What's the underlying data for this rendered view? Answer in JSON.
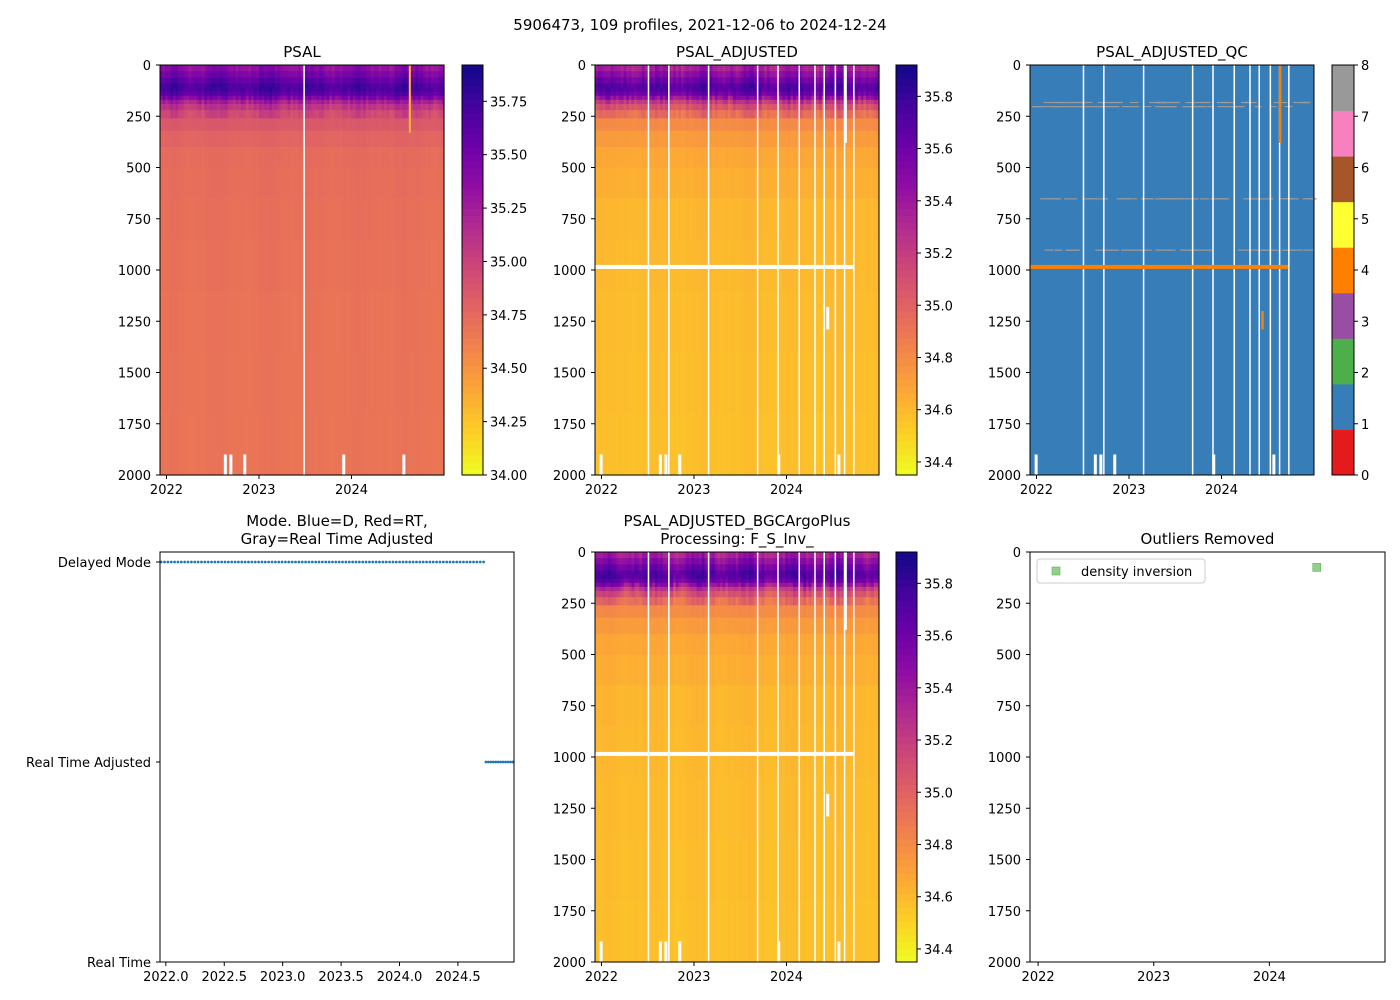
{
  "suptitle": "5906473, 109 profiles, 2021-12-06 to 2024-12-24",
  "colors": {
    "gap": "#ffffff",
    "mode_dot": "#1f77b4",
    "qc_fill": "#377eb8",
    "qc_flag4": "#ff7f00",
    "qc_flag8": "#999999",
    "legend_square": "#90d08a"
  },
  "chart_data": [
    {
      "type": "heatmap",
      "title": "PSAL",
      "x_tick_labels": [
        "2022",
        "2023",
        "2024"
      ],
      "x_tick_values": [
        2022,
        2023,
        2024
      ],
      "xlim": [
        2021.93,
        2025.0
      ],
      "y_tick_labels": [
        "0",
        "250",
        "500",
        "750",
        "1000",
        "1250",
        "1500",
        "1750",
        "2000"
      ],
      "y_tick_values": [
        0,
        250,
        500,
        750,
        1000,
        1250,
        1500,
        1750,
        2000
      ],
      "ylim": [
        2000,
        0
      ],
      "colormap": "plasma_r",
      "colorbar": {
        "range": [
          34.0,
          35.92
        ],
        "tick_labels": [
          "34.00",
          "34.25",
          "34.50",
          "34.75",
          "35.00",
          "35.25",
          "35.50",
          "35.75"
        ],
        "tick_values": [
          34.0,
          34.25,
          34.5,
          34.75,
          35.0,
          35.25,
          35.5,
          35.75
        ]
      },
      "depth_profile": {
        "depths": [
          0,
          40,
          80,
          110,
          150,
          180,
          220,
          280,
          350,
          450,
          700,
          1200,
          2000
        ],
        "values": [
          35.3,
          35.45,
          35.6,
          35.72,
          35.55,
          35.2,
          35.0,
          34.85,
          34.77,
          34.72,
          34.7,
          34.68,
          34.67
        ]
      },
      "gap_years": [
        2023.48
      ],
      "bottom_gaps": [
        2022.62,
        2022.68,
        2022.83,
        2023.9,
        2024.55
      ],
      "spikes": [
        {
          "x": 2024.62,
          "dmin": 0,
          "dmax": 330,
          "value": 34.3
        }
      ]
    },
    {
      "type": "heatmap",
      "title": "PSAL_ADJUSTED",
      "x_tick_labels": [
        "2022",
        "2023",
        "2024"
      ],
      "x_tick_values": [
        2022,
        2023,
        2024
      ],
      "xlim": [
        2021.93,
        2025.0
      ],
      "y_tick_labels": [
        "0",
        "250",
        "500",
        "750",
        "1000",
        "1250",
        "1500",
        "1750",
        "2000"
      ],
      "y_tick_values": [
        0,
        250,
        500,
        750,
        1000,
        1250,
        1500,
        1750,
        2000
      ],
      "ylim": [
        2000,
        0
      ],
      "colormap": "plasma_r",
      "colorbar": {
        "range": [
          34.35,
          35.92
        ],
        "tick_labels": [
          "34.4",
          "34.6",
          "34.8",
          "35.0",
          "35.2",
          "35.4",
          "35.6",
          "35.8"
        ],
        "tick_values": [
          34.4,
          34.6,
          34.8,
          35.0,
          35.2,
          35.4,
          35.6,
          35.8
        ]
      },
      "depth_profile": {
        "depths": [
          0,
          40,
          80,
          110,
          150,
          180,
          220,
          280,
          350,
          450,
          700,
          1200,
          2000
        ],
        "values": [
          35.3,
          35.45,
          35.6,
          35.72,
          35.55,
          35.2,
          35.0,
          34.8,
          34.72,
          34.66,
          34.6,
          34.58,
          34.56
        ]
      },
      "gap_years": [
        2022.5,
        2022.72,
        2023.15,
        2023.68,
        2023.9,
        2024.13,
        2024.3,
        2024.4,
        2024.52,
        2024.62,
        2024.72
      ],
      "line_gap_depth": 985,
      "line_gap_xmax": 2024.72,
      "bottom_gaps": [
        2021.98,
        2022.62,
        2022.68,
        2022.83,
        2023.9,
        2024.55
      ],
      "short_gaps": [
        {
          "x": 2024.62,
          "dmin": 0,
          "dmax": 380
        },
        {
          "x": 2024.43,
          "dmin": 1180,
          "dmax": 1290
        }
      ]
    },
    {
      "type": "heatmap",
      "title": "PSAL_ADJUSTED_QC",
      "x_tick_labels": [
        "2022",
        "2023",
        "2024"
      ],
      "x_tick_values": [
        2022,
        2023,
        2024
      ],
      "xlim": [
        2021.93,
        2025.0
      ],
      "y_tick_labels": [
        "0",
        "250",
        "500",
        "750",
        "1000",
        "1250",
        "1500",
        "1750",
        "2000"
      ],
      "y_tick_values": [
        0,
        250,
        500,
        750,
        1000,
        1250,
        1500,
        1750,
        2000
      ],
      "ylim": [
        2000,
        0
      ],
      "colormap": "qc_flags",
      "colorbar": {
        "range": [
          0,
          8
        ],
        "tick_labels": [
          "0",
          "1",
          "2",
          "3",
          "4",
          "5",
          "6",
          "7",
          "8"
        ],
        "tick_values": [
          0,
          1,
          2,
          3,
          4,
          5,
          6,
          7,
          8
        ],
        "flag_colors": [
          "#e41a1c",
          "#377eb8",
          "#4daf4a",
          "#984ea3",
          "#ff7f00",
          "#ffff33",
          "#a65628",
          "#f781bf",
          "#999999"
        ]
      },
      "gap_years": [
        2022.5,
        2022.72,
        2023.15,
        2023.68,
        2023.9,
        2024.13,
        2024.3,
        2024.4,
        2024.52,
        2024.62,
        2024.72
      ],
      "flag4_line": {
        "depth": 985,
        "xmin": 2021.93,
        "xmax": 2024.72
      },
      "flag4_marks": [
        {
          "x": 2024.62,
          "dmin": 0,
          "dmax": 380
        },
        {
          "x": 2024.43,
          "dmin": 1200,
          "dmax": 1290
        }
      ],
      "flag8_depths": [
        180,
        200,
        650,
        900
      ],
      "bottom_gaps": [
        2021.98,
        2022.62,
        2022.68,
        2022.83,
        2023.9,
        2024.55
      ]
    },
    {
      "type": "scatter",
      "title_line1": "Mode. Blue=D, Red=RT,",
      "title_line2": "Gray=Real Time Adjusted",
      "x_tick_labels": [
        "2022.0",
        "2022.5",
        "2023.0",
        "2023.5",
        "2024.0",
        "2024.5"
      ],
      "x_tick_values": [
        2022.0,
        2022.5,
        2023.0,
        2023.5,
        2024.0,
        2024.5
      ],
      "xlim": [
        2021.95,
        2024.98
      ],
      "y_categories": [
        "Delayed Mode",
        "Real Time Adjusted",
        "Real Time"
      ],
      "series": [
        {
          "name": "Delayed Mode",
          "level": 0,
          "x_start": 2021.96,
          "x_end": 2024.72,
          "count": 97
        },
        {
          "name": "Real Time Adjusted",
          "level": 1,
          "x_start": 2024.74,
          "x_end": 2024.97,
          "count": 12
        }
      ]
    },
    {
      "type": "heatmap",
      "title_line1": "PSAL_ADJUSTED_BGCArgoPlus",
      "title_line2": "Processing: F_S_Inv_",
      "x_tick_labels": [
        "2022",
        "2023",
        "2024"
      ],
      "x_tick_values": [
        2022,
        2023,
        2024
      ],
      "xlim": [
        2021.93,
        2025.0
      ],
      "y_tick_labels": [
        "0",
        "250",
        "500",
        "750",
        "1000",
        "1250",
        "1500",
        "1750",
        "2000"
      ],
      "y_tick_values": [
        0,
        250,
        500,
        750,
        1000,
        1250,
        1500,
        1750,
        2000
      ],
      "ylim": [
        2000,
        0
      ],
      "colormap": "plasma_r",
      "colorbar": {
        "range": [
          34.35,
          35.92
        ],
        "tick_labels": [
          "34.4",
          "34.6",
          "34.8",
          "35.0",
          "35.2",
          "35.4",
          "35.6",
          "35.8"
        ],
        "tick_values": [
          34.4,
          34.6,
          34.8,
          35.0,
          35.2,
          35.4,
          35.6,
          35.8
        ]
      },
      "depth_profile": {
        "depths": [
          0,
          40,
          80,
          110,
          150,
          180,
          220,
          280,
          350,
          450,
          700,
          1200,
          2000
        ],
        "values": [
          35.3,
          35.45,
          35.6,
          35.72,
          35.55,
          35.2,
          35.0,
          34.8,
          34.72,
          34.66,
          34.6,
          34.58,
          34.56
        ]
      },
      "gap_years": [
        2022.5,
        2022.72,
        2023.15,
        2023.68,
        2023.9,
        2024.13,
        2024.3,
        2024.4,
        2024.52,
        2024.62,
        2024.72
      ],
      "line_gap_depth": 985,
      "line_gap_xmax": 2024.72,
      "bottom_gaps": [
        2021.98,
        2022.62,
        2022.68,
        2022.83,
        2023.9,
        2024.55
      ],
      "short_gaps": [
        {
          "x": 2024.62,
          "dmin": 0,
          "dmax": 380
        },
        {
          "x": 2024.43,
          "dmin": 1180,
          "dmax": 1290
        }
      ]
    },
    {
      "type": "scatter",
      "title": "Outliers Removed",
      "x_tick_labels": [
        "2022",
        "2023",
        "2024"
      ],
      "x_tick_values": [
        2022,
        2023,
        2024
      ],
      "xlim": [
        2021.93,
        2025.0
      ],
      "y_tick_labels": [
        "0",
        "250",
        "500",
        "750",
        "1000",
        "1250",
        "1500",
        "1750",
        "2000"
      ],
      "y_tick_values": [
        0,
        250,
        500,
        750,
        1000,
        1250,
        1500,
        1750,
        2000
      ],
      "ylim": [
        2000,
        0
      ],
      "legend": {
        "label": "density inversion",
        "location": "upper-left"
      },
      "points": [
        {
          "x": 2024.41,
          "y": 75,
          "label": "density inversion"
        }
      ]
    }
  ]
}
